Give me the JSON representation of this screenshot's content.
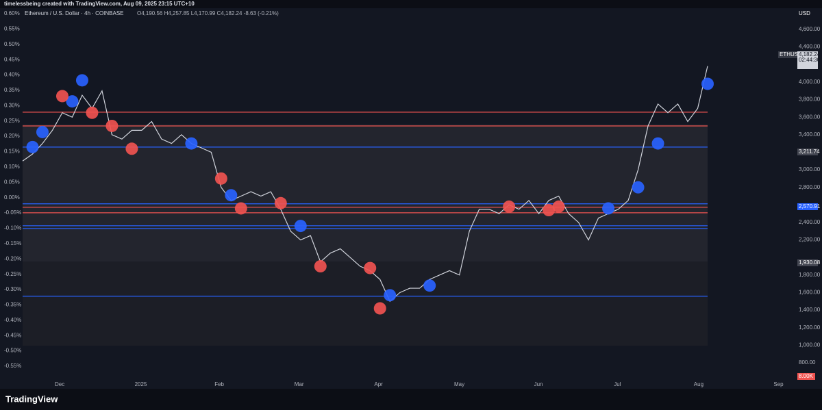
{
  "header": {
    "credit": "timelessbeing created with TradingView.com, Aug 09, 2025 23:15 UTC+10",
    "symbol": "Ethereum / U.S. Dollar · 4h · COINBASE",
    "ohlc": "O4,190.56 H4,257.85 L4,170.99 C4,182.24 -8.63 (-0.21%)"
  },
  "chart_data": {
    "type": "line",
    "ylim": [
      -0.55,
      0.6
    ],
    "yticks": [
      {
        "value": 0.6,
        "label": "0.60%"
      },
      {
        "value": 0.55,
        "label": "0.55%"
      },
      {
        "value": 0.5,
        "label": "0.50%"
      },
      {
        "value": 0.45,
        "label": "0.45%"
      },
      {
        "value": 0.4,
        "label": "0.40%"
      },
      {
        "value": 0.35,
        "label": "0.35%"
      },
      {
        "value": 0.3,
        "label": "0.30%"
      },
      {
        "value": 0.25,
        "label": "0.25%"
      },
      {
        "value": 0.2,
        "label": "0.20%"
      },
      {
        "value": 0.15,
        "label": "0.15%"
      },
      {
        "value": 0.1,
        "label": "0.10%"
      },
      {
        "value": 0.05,
        "label": "0.05%"
      },
      {
        "value": 0,
        "label": "0.00%"
      },
      {
        "value": -0.05,
        "label": "-0.05%"
      },
      {
        "value": -0.1,
        "label": "-0.10%"
      },
      {
        "value": -0.15,
        "label": "-0.15%"
      },
      {
        "value": -0.2,
        "label": "-0.20%"
      },
      {
        "value": -0.25,
        "label": "-0.25%"
      },
      {
        "value": -0.3,
        "label": "-0.30%"
      },
      {
        "value": -0.35,
        "label": "-0.35%"
      },
      {
        "value": -0.4,
        "label": "-0.40%"
      },
      {
        "value": -0.45,
        "label": "-0.45%"
      },
      {
        "value": -0.5,
        "label": "-0.50%"
      },
      {
        "value": -0.55,
        "label": "-0.55%"
      }
    ],
    "y2lim": [
      800,
      4600
    ],
    "y2ticks": [
      {
        "value": 4600,
        "label": "4,600.00"
      },
      {
        "value": 4400,
        "label": "4,400.00"
      },
      {
        "value": 4000,
        "label": "4,000.00"
      },
      {
        "value": 3800,
        "label": "3,800.00"
      },
      {
        "value": 3600,
        "label": "3,600.00"
      },
      {
        "value": 3400,
        "label": "3,400.00"
      },
      {
        "value": 3000,
        "label": "3,000.00"
      },
      {
        "value": 2800,
        "label": "2,800.00"
      },
      {
        "value": 2400,
        "label": "2,400.00"
      },
      {
        "value": 2200,
        "label": "2,200.00"
      },
      {
        "value": 1800,
        "label": "1,800.00"
      },
      {
        "value": 1600,
        "label": "1,600.00"
      },
      {
        "value": 1400,
        "label": "1,400.00"
      },
      {
        "value": 1200,
        "label": "1,200.00"
      },
      {
        "value": 1000,
        "label": "1,000.00"
      },
      {
        "value": 800,
        "label": "800.00"
      }
    ],
    "months": [
      "Dec",
      "2025",
      "Feb",
      "Mar",
      "Apr",
      "May",
      "Jun",
      "Jul",
      "Aug",
      "Sep"
    ],
    "series": [
      {
        "name": "ETHUSD",
        "color": "#d1d4dc",
        "axis": "y2",
        "values": [
          3100,
          3180,
          3300,
          3450,
          3650,
          3600,
          3850,
          3700,
          3900,
          3400,
          3350,
          3450,
          3450,
          3550,
          3350,
          3300,
          3400,
          3300,
          3250,
          3200,
          2800,
          2650,
          2700,
          2750,
          2700,
          2750,
          2550,
          2300,
          2200,
          2250,
          1950,
          2050,
          2100,
          2000,
          1900,
          1850,
          1750,
          1500,
          1600,
          1650,
          1650,
          1750,
          1800,
          1850,
          1800,
          2300,
          2550,
          2550,
          2500,
          2600,
          2550,
          2650,
          2500,
          2650,
          2700,
          2500,
          2400,
          2200,
          2450,
          2500,
          2550,
          2650,
          3000,
          3500,
          3750,
          3650,
          3750,
          3550,
          3700,
          4182.24
        ]
      },
      {
        "color": "#2962ff",
        "axis": "y2",
        "values": [
          null,
          3259,
          3430,
          null,
          null,
          3780,
          4020,
          null,
          null,
          null,
          null,
          null,
          null,
          null,
          null,
          null,
          null,
          3300,
          null,
          null,
          null,
          2710,
          null,
          null,
          null,
          null,
          null,
          null,
          2360,
          null,
          null,
          null,
          null,
          null,
          null,
          null,
          null,
          1570,
          null,
          null,
          null,
          1680,
          null,
          null,
          null,
          null,
          null,
          null,
          null,
          null,
          null,
          null,
          null,
          null,
          null,
          null,
          null,
          null,
          null,
          2560,
          null,
          null,
          2800,
          null,
          3300,
          null,
          null,
          null,
          null,
          3980
        ]
      },
      {
        "color": "#f05350",
        "axis": "y2",
        "values": [
          null,
          null,
          null,
          null,
          3840,
          null,
          null,
          3650,
          null,
          3500,
          null,
          3240,
          null,
          null,
          null,
          null,
          null,
          null,
          null,
          null,
          2900,
          null,
          2560,
          null,
          null,
          null,
          2620,
          null,
          null,
          null,
          1900,
          null,
          null,
          null,
          null,
          1880,
          1420,
          null,
          null,
          null,
          null,
          null,
          null,
          null,
          null,
          null,
          null,
          null,
          null,
          2580,
          null,
          null,
          null,
          2540,
          2580,
          null,
          null,
          null,
          null,
          null,
          null,
          null,
          null,
          null,
          null,
          null,
          null,
          null,
          null,
          null
        ]
      }
    ],
    "levels": [
      {
        "value": 3657,
        "color": "#f05350"
      },
      {
        "value": 3500,
        "color": "#f05350"
      },
      {
        "value": 3259,
        "color": "#2962ff"
      },
      {
        "value": 2612,
        "color": "#2962ff"
      },
      {
        "value": 2573,
        "color": "#f05350"
      },
      {
        "value": 2510,
        "color": "#f05350"
      },
      {
        "value": 2362,
        "color": "#2962ff"
      },
      {
        "value": 2331,
        "color": "#2962ff"
      },
      {
        "value": 1559,
        "color": "#2962ff"
      }
    ]
  },
  "price_labels": {
    "currency": "USD",
    "symbol": "ETHUSD",
    "last": "4,182.24",
    "countdown": "02:44:30",
    "upper": "3,211.74",
    "mid": "2,570.91",
    "lower": "1,930.08",
    "volume": "8.00K"
  },
  "footer": {
    "brand": "TradingView"
  }
}
